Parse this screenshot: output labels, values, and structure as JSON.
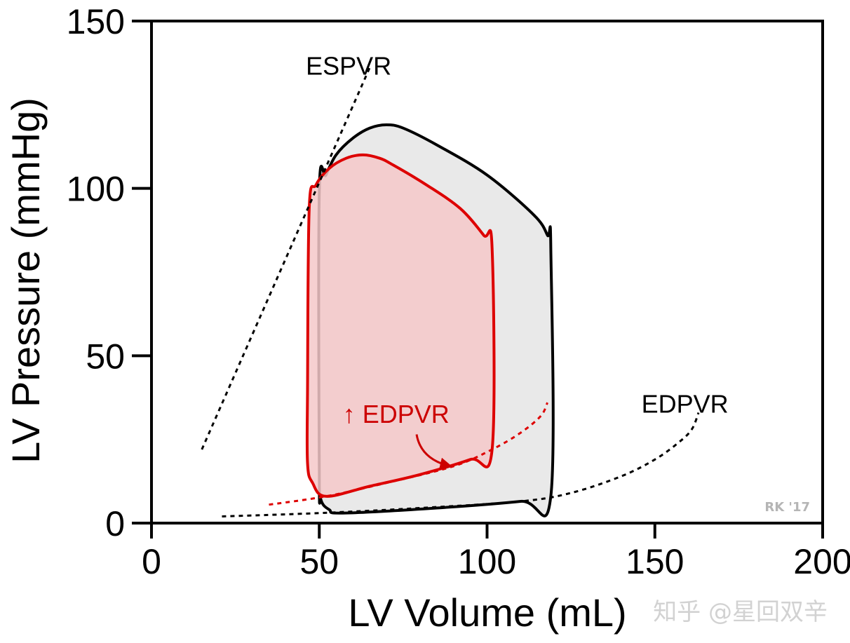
{
  "chart_data": {
    "type": "line",
    "title": "",
    "xlabel": "LV Volume (mL)",
    "ylabel": "LV Pressure (mmHg)",
    "xlim": [
      0,
      200
    ],
    "ylim": [
      0,
      150
    ],
    "x_ticks": [
      0,
      50,
      100,
      150,
      200
    ],
    "x_tick_labels": [
      "0",
      "50",
      "100",
      "150",
      "200"
    ],
    "y_ticks": [
      0,
      50,
      100,
      150
    ],
    "y_tick_labels": [
      "0",
      "50",
      "100",
      "150"
    ],
    "grid": false,
    "series": [
      {
        "name": "Normal PV loop",
        "kind": "closed-loop",
        "stroke": "#000000",
        "fill": "#e9e9e9",
        "points": [
          [
            57,
            3
          ],
          [
            85,
            4.5
          ],
          [
            110,
            6.5
          ],
          [
            119,
            8
          ],
          [
            119,
            82
          ],
          [
            118,
            86
          ],
          [
            114,
            92
          ],
          [
            100,
            104
          ],
          [
            85,
            113
          ],
          [
            75,
            118
          ],
          [
            70,
            119
          ],
          [
            65,
            118
          ],
          [
            60,
            115
          ],
          [
            55,
            110
          ],
          [
            52,
            104
          ],
          [
            50,
            99
          ],
          [
            50,
            15
          ],
          [
            50.5,
            7
          ],
          [
            53,
            4
          ],
          [
            57,
            3
          ]
        ]
      },
      {
        "name": "Increased EDPVR PV loop",
        "kind": "closed-loop",
        "stroke": "#dd0000",
        "fill": "#f4c8c9",
        "points": [
          [
            52,
            8
          ],
          [
            65,
            11
          ],
          [
            80,
            14.5
          ],
          [
            95,
            19
          ],
          [
            101.5,
            22
          ],
          [
            101.5,
            82
          ],
          [
            99,
            86
          ],
          [
            92,
            94
          ],
          [
            82,
            101
          ],
          [
            72,
            107
          ],
          [
            68,
            109
          ],
          [
            63,
            110
          ],
          [
            58,
            109
          ],
          [
            53,
            106
          ],
          [
            49,
            101
          ],
          [
            47,
            94
          ],
          [
            46.5,
            40
          ],
          [
            46.5,
            18
          ],
          [
            48,
            12
          ],
          [
            52,
            8
          ]
        ]
      },
      {
        "name": "ESPVR",
        "kind": "dashed-line",
        "stroke": "#000000",
        "points": [
          [
            15,
            22
          ],
          [
            65,
            136
          ]
        ]
      },
      {
        "name": "EDPVR",
        "kind": "dashed-line",
        "stroke": "#000000",
        "points": [
          [
            21,
            2
          ],
          [
            50,
            3
          ],
          [
            80,
            4.5
          ],
          [
            110,
            6.5
          ],
          [
            125,
            9
          ],
          [
            140,
            14
          ],
          [
            150,
            19
          ],
          [
            157,
            24
          ],
          [
            161,
            28
          ],
          [
            163,
            33
          ]
        ]
      },
      {
        "name": "↑ EDPVR",
        "kind": "dashed-line",
        "stroke": "#dd0000",
        "points": [
          [
            35,
            5.5
          ],
          [
            52,
            8
          ],
          [
            70,
            12
          ],
          [
            90,
            17
          ],
          [
            101.5,
            22
          ],
          [
            110,
            27
          ],
          [
            116,
            32
          ],
          [
            118,
            36
          ]
        ]
      }
    ],
    "annotations": [
      {
        "text": "ESPVR",
        "x": 46,
        "y": 134,
        "color": "#000000"
      },
      {
        "text": "EDPVR",
        "x": 146,
        "y": 33,
        "color": "#000000"
      },
      {
        "text": "↑ EDPVR",
        "x": 57,
        "y": 30,
        "color": "#cc0000"
      }
    ],
    "arrow": {
      "from": [
        79,
        26.5
      ],
      "to": [
        89,
        17
      ],
      "color": "#cc0000"
    },
    "credit": "RK '17",
    "watermark": "知乎 @星回双辛"
  }
}
